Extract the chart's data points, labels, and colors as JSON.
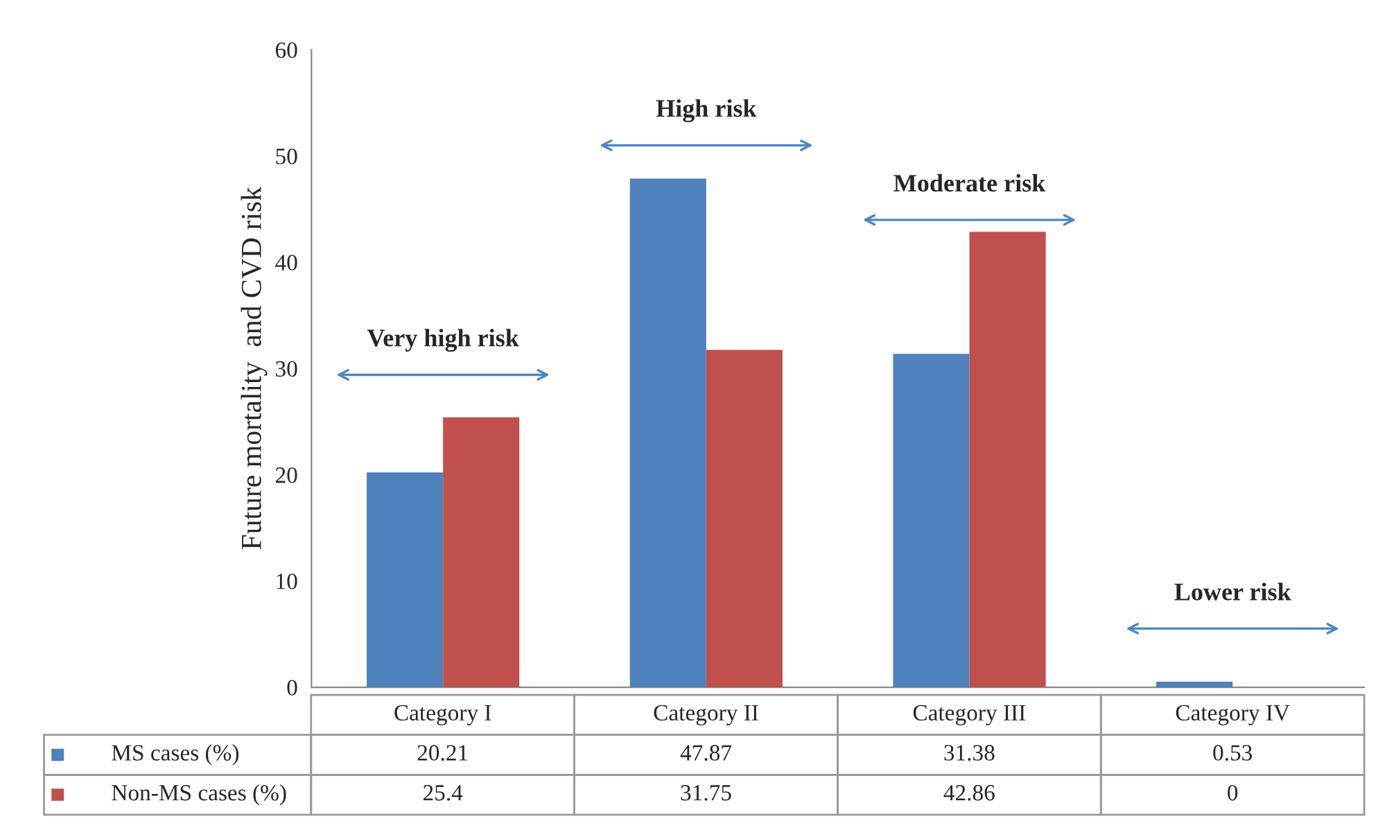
{
  "chart_data": {
    "type": "bar",
    "ylabel": "Future mortality  and CVD risk",
    "categories": [
      "Category I",
      "Category II",
      "Category III",
      "Category IV"
    ],
    "series": [
      {
        "name": "MS cases (%)",
        "color": "#4f81bd",
        "values": [
          20.21,
          47.87,
          31.38,
          0.53
        ]
      },
      {
        "name": "Non-MS cases (%)",
        "color": "#c0504d",
        "values": [
          25.4,
          31.75,
          42.86,
          0
        ]
      }
    ],
    "ylim": [
      0,
      60
    ],
    "yticks": [
      0,
      10,
      20,
      30,
      40,
      50,
      60
    ],
    "grid": false,
    "data_labels": true,
    "legend": "bottom",
    "annotations": [
      "Very high risk",
      "High risk",
      "Moderate risk",
      "Lower risk"
    ]
  }
}
